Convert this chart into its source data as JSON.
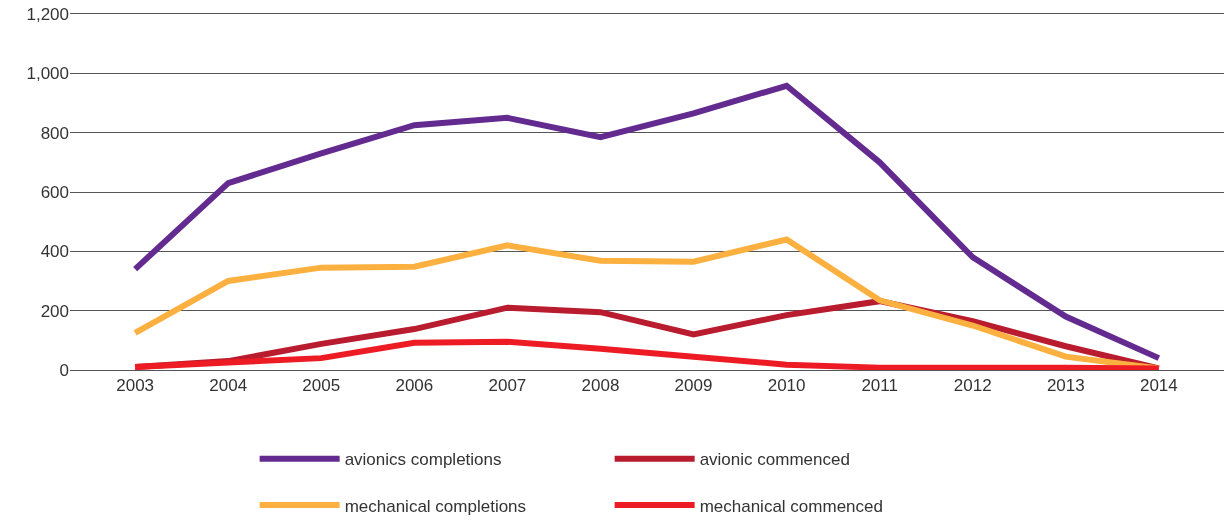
{
  "chart_data": {
    "type": "line",
    "categories": [
      "2003",
      "2004",
      "2005",
      "2006",
      "2007",
      "2008",
      "2009",
      "2010",
      "2011",
      "2012",
      "2013",
      "2014"
    ],
    "series": [
      {
        "name": "avionics completions",
        "color": "#632b8f",
        "values": [
          340,
          630,
          730,
          825,
          850,
          785,
          865,
          958,
          700,
          380,
          180,
          40
        ]
      },
      {
        "name": "avionic commenced",
        "color": "#b91c2e",
        "values": [
          10,
          30,
          88,
          138,
          210,
          195,
          120,
          185,
          232,
          165,
          80,
          5
        ]
      },
      {
        "name": "mechanical completions",
        "color": "#fbb040",
        "values": [
          125,
          300,
          345,
          348,
          420,
          368,
          365,
          440,
          235,
          150,
          45,
          5
        ]
      },
      {
        "name": "mechanical commenced",
        "color": "#ed1c24",
        "values": [
          10,
          25,
          40,
          92,
          95,
          72,
          45,
          18,
          8,
          8,
          8,
          5
        ]
      }
    ],
    "ylim": [
      0,
      1200
    ],
    "yticks": [
      0,
      {
        "value": 200,
        "label": "200"
      },
      {
        "value": 400,
        "label": "400"
      },
      {
        "value": 600,
        "label": "600"
      },
      {
        "value": 800,
        "label": "800"
      },
      {
        "value": 1000,
        "label": "1,000"
      },
      {
        "value": 1200,
        "label": "1,200"
      }
    ],
    "grid": "y",
    "legend": "bottom",
    "marker": "none",
    "line_style": "solid"
  }
}
